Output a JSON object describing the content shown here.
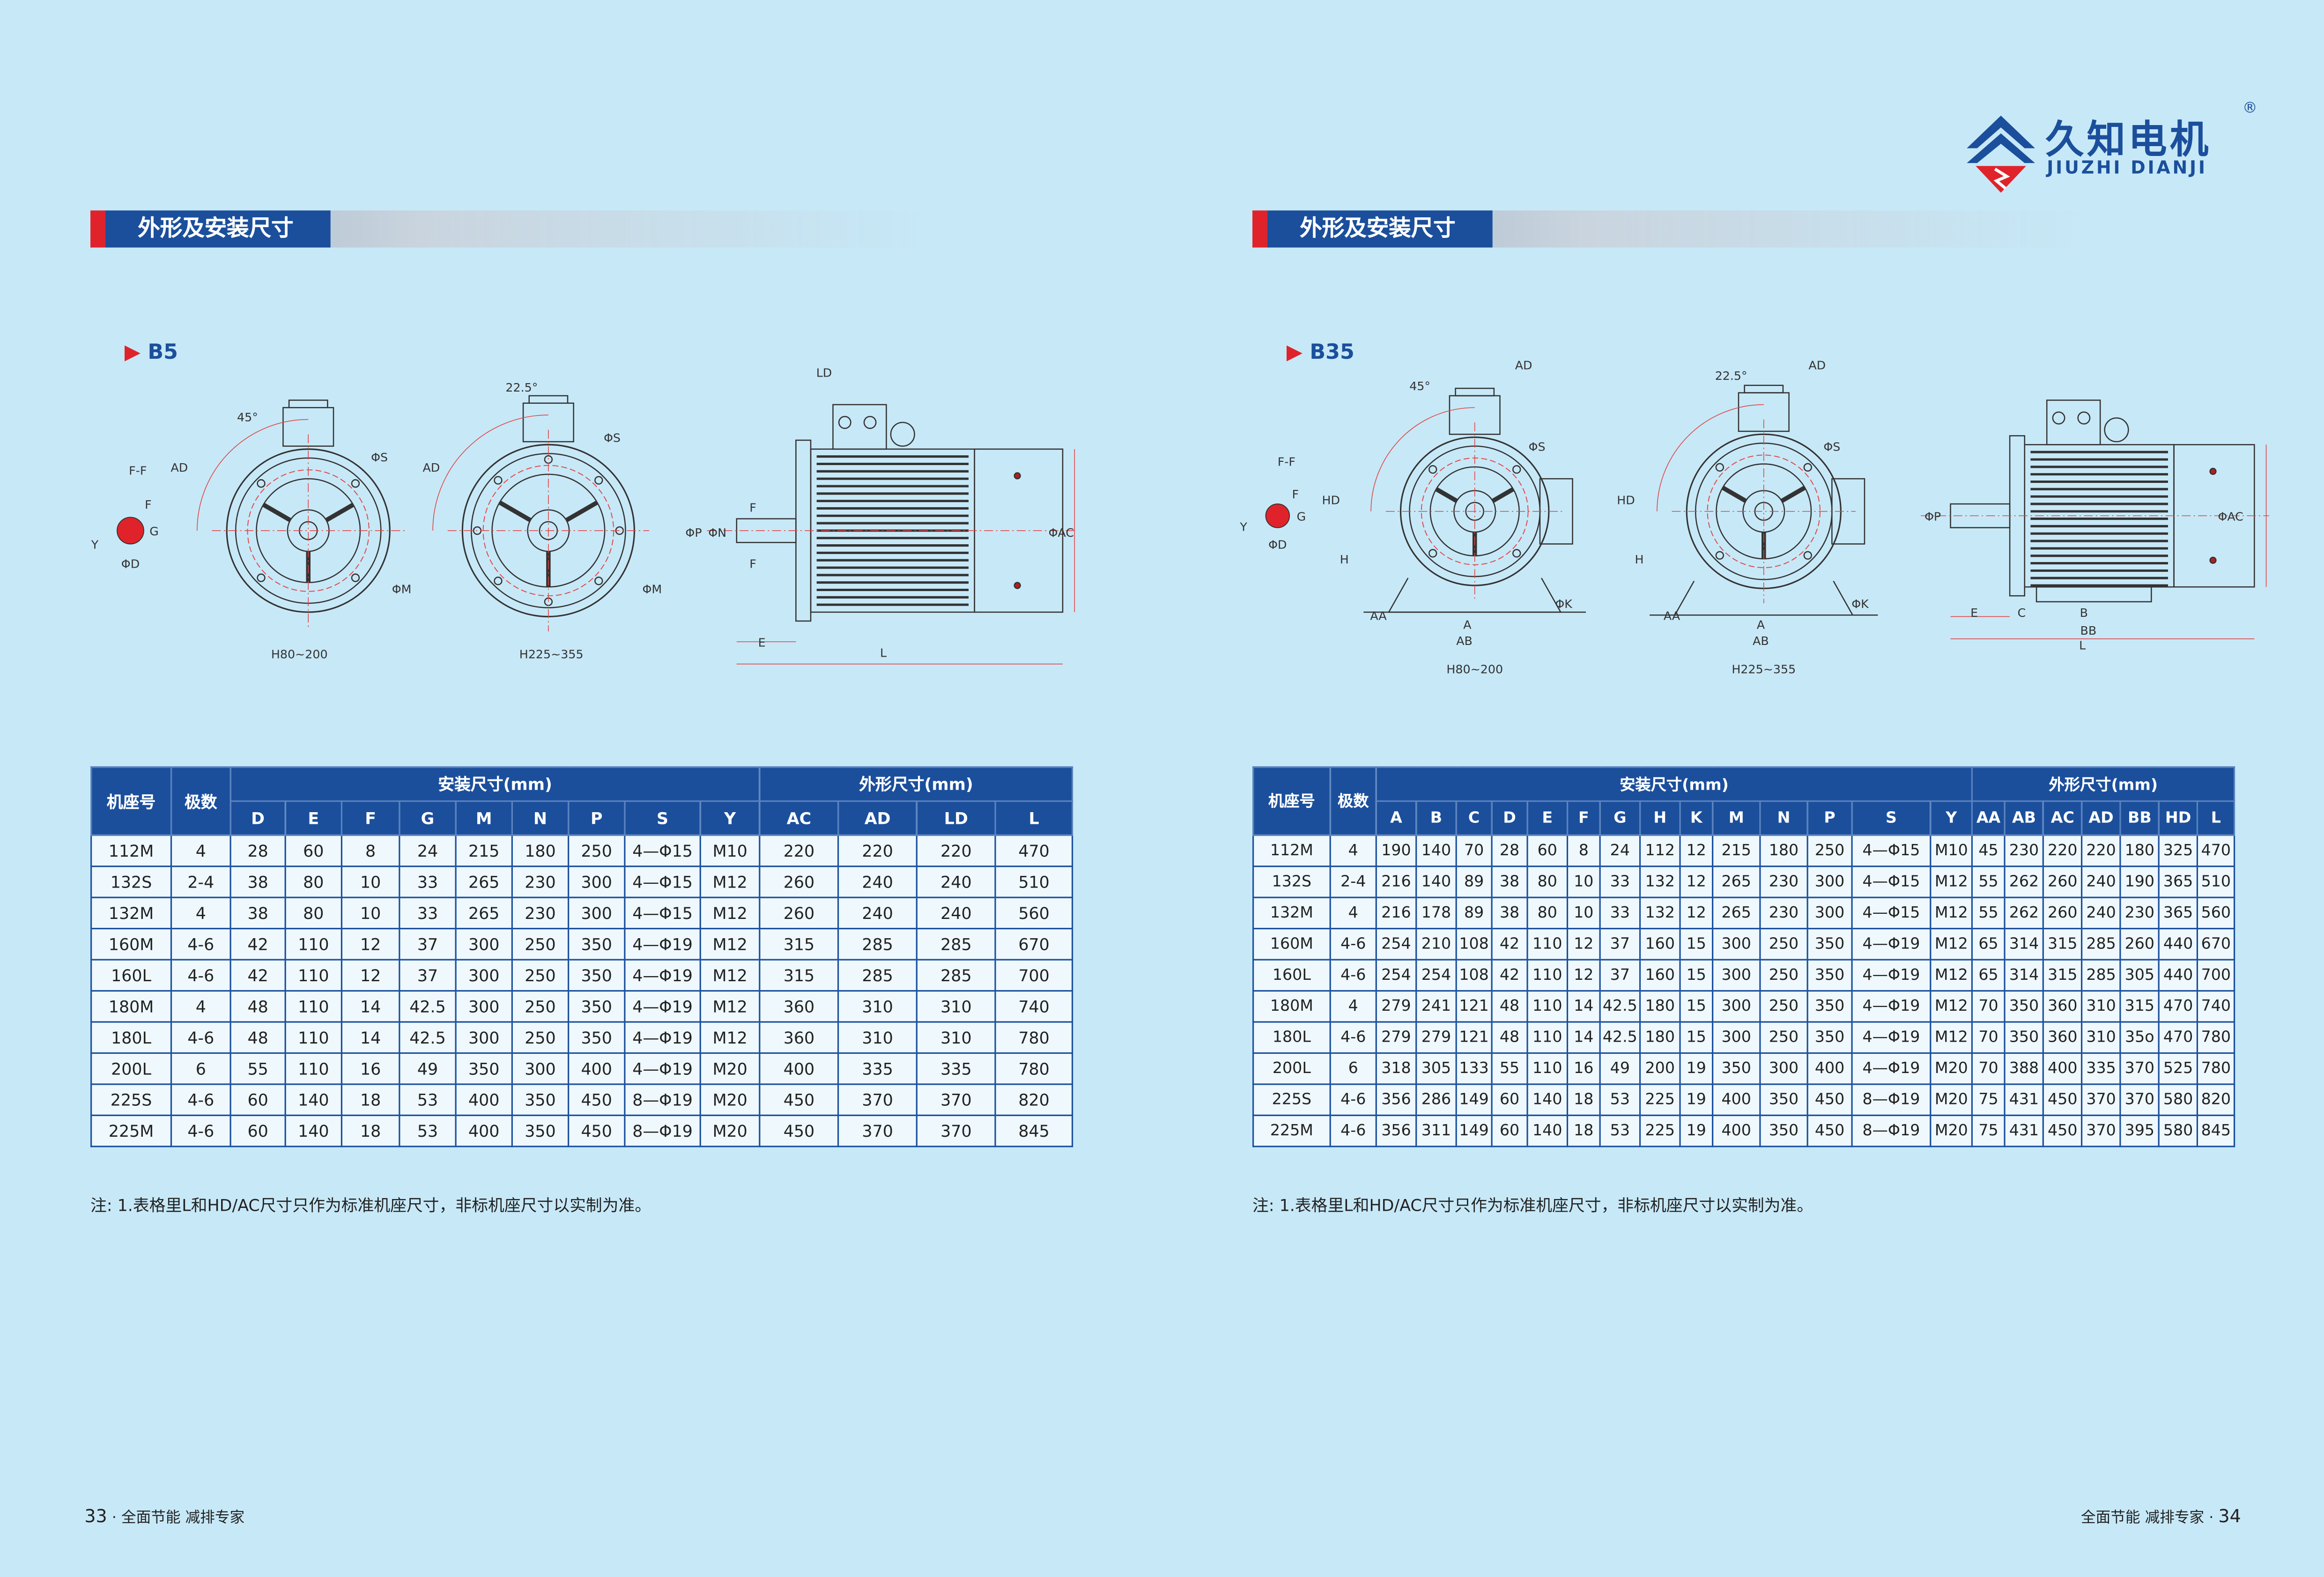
{
  "logo": {
    "name": "久知电机",
    "pinyin": "JIUZHI DIANJI",
    "mark": "®"
  },
  "pages": [
    {
      "section_title": "外形及安装尺寸",
      "drawing": {
        "title": "B5",
        "labels": [
          "F-F",
          "F",
          "G",
          "Y",
          "ΦD",
          "AD",
          "45°",
          "ΦS",
          "ΦM",
          "H80~200",
          "AD",
          "22.5°",
          "ΦS",
          "ΦM",
          "H225~355",
          "LD",
          "ΦP",
          "ΦN",
          "F",
          "F",
          "ΦAC",
          "E",
          "L"
        ]
      },
      "table": {
        "fixed_headers": [
          "机座号",
          "极数"
        ],
        "groups": [
          "安装尺寸(mm)",
          "外形尺寸(mm)"
        ],
        "install": [
          "D",
          "E",
          "F",
          "G",
          "M",
          "N",
          "P",
          "S",
          "Y"
        ],
        "outline": [
          "AC",
          "AD",
          "LD",
          "L"
        ],
        "rows": [
          [
            "112M",
            "4",
            "28",
            "60",
            "8",
            "24",
            "215",
            "180",
            "250",
            "4—Φ15",
            "M10",
            "220",
            "220",
            "220",
            "470"
          ],
          [
            "132S",
            "2-4",
            "38",
            "80",
            "10",
            "33",
            "265",
            "230",
            "300",
            "4—Φ15",
            "M12",
            "260",
            "240",
            "240",
            "510"
          ],
          [
            "132M",
            "4",
            "38",
            "80",
            "10",
            "33",
            "265",
            "230",
            "300",
            "4—Φ15",
            "M12",
            "260",
            "240",
            "240",
            "560"
          ],
          [
            "160M",
            "4-6",
            "42",
            "110",
            "12",
            "37",
            "300",
            "250",
            "350",
            "4—Φ19",
            "M12",
            "315",
            "285",
            "285",
            "670"
          ],
          [
            "160L",
            "4-6",
            "42",
            "110",
            "12",
            "37",
            "300",
            "250",
            "350",
            "4—Φ19",
            "M12",
            "315",
            "285",
            "285",
            "700"
          ],
          [
            "180M",
            "4",
            "48",
            "110",
            "14",
            "42.5",
            "300",
            "250",
            "350",
            "4—Φ19",
            "M12",
            "360",
            "310",
            "310",
            "740"
          ],
          [
            "180L",
            "4-6",
            "48",
            "110",
            "14",
            "42.5",
            "300",
            "250",
            "350",
            "4—Φ19",
            "M12",
            "360",
            "310",
            "310",
            "780"
          ],
          [
            "200L",
            "6",
            "55",
            "110",
            "16",
            "49",
            "350",
            "300",
            "400",
            "4—Φ19",
            "M20",
            "400",
            "335",
            "335",
            "780"
          ],
          [
            "225S",
            "4-6",
            "60",
            "140",
            "18",
            "53",
            "400",
            "350",
            "450",
            "8—Φ19",
            "M20",
            "450",
            "370",
            "370",
            "820"
          ],
          [
            "225M",
            "4-6",
            "60",
            "140",
            "18",
            "53",
            "400",
            "350",
            "450",
            "8—Φ19",
            "M20",
            "450",
            "370",
            "370",
            "845"
          ]
        ]
      },
      "note": "注: 1.表格里L和HD/AC尺寸只作为标准机座尺寸，非标机座尺寸以实制为准。",
      "footer": {
        "number": "33",
        "slogan": "· 全面节能  减排专家"
      }
    },
    {
      "section_title": "外形及安装尺寸",
      "drawing": {
        "title": "B35",
        "labels": [
          "F-F",
          "F",
          "G",
          "Y",
          "ΦD",
          "HD",
          "H",
          "45°",
          "AD",
          "ΦS",
          "AA",
          "A",
          "AB",
          "ΦK",
          "H80~200",
          "HD",
          "H",
          "22.5°",
          "AD",
          "ΦS",
          "AA",
          "A",
          "AB",
          "ΦK",
          "H225~355",
          "ΦP",
          "ΦAC",
          "E",
          "C",
          "B",
          "BB",
          "L"
        ]
      },
      "table": {
        "fixed_headers": [
          "机座号",
          "极数"
        ],
        "groups": [
          "安装尺寸(mm)",
          "外形尺寸(mm)"
        ],
        "install": [
          "A",
          "B",
          "C",
          "D",
          "E",
          "F",
          "G",
          "H",
          "K",
          "M",
          "N",
          "P",
          "S",
          "Y"
        ],
        "outline": [
          "AA",
          "AB",
          "AC",
          "AD",
          "BB",
          "HD",
          "L"
        ],
        "rows": [
          [
            "112M",
            "4",
            "190",
            "140",
            "70",
            "28",
            "60",
            "8",
            "24",
            "112",
            "12",
            "215",
            "180",
            "250",
            "4—Φ15",
            "M10",
            "45",
            "230",
            "220",
            "220",
            "180",
            "325",
            "470"
          ],
          [
            "132S",
            "2-4",
            "216",
            "140",
            "89",
            "38",
            "80",
            "10",
            "33",
            "132",
            "12",
            "265",
            "230",
            "300",
            "4—Φ15",
            "M12",
            "55",
            "262",
            "260",
            "240",
            "190",
            "365",
            "510"
          ],
          [
            "132M",
            "4",
            "216",
            "178",
            "89",
            "38",
            "80",
            "10",
            "33",
            "132",
            "12",
            "265",
            "230",
            "300",
            "4—Φ15",
            "M12",
            "55",
            "262",
            "260",
            "240",
            "230",
            "365",
            "560"
          ],
          [
            "160M",
            "4-6",
            "254",
            "210",
            "108",
            "42",
            "110",
            "12",
            "37",
            "160",
            "15",
            "300",
            "250",
            "350",
            "4—Φ19",
            "M12",
            "65",
            "314",
            "315",
            "285",
            "260",
            "440",
            "670"
          ],
          [
            "160L",
            "4-6",
            "254",
            "254",
            "108",
            "42",
            "110",
            "12",
            "37",
            "160",
            "15",
            "300",
            "250",
            "350",
            "4—Φ19",
            "M12",
            "65",
            "314",
            "315",
            "285",
            "305",
            "440",
            "700"
          ],
          [
            "180M",
            "4",
            "279",
            "241",
            "121",
            "48",
            "110",
            "14",
            "42.5",
            "180",
            "15",
            "300",
            "250",
            "350",
            "4—Φ19",
            "M12",
            "70",
            "350",
            "360",
            "310",
            "315",
            "470",
            "740"
          ],
          [
            "180L",
            "4-6",
            "279",
            "279",
            "121",
            "48",
            "110",
            "14",
            "42.5",
            "180",
            "15",
            "300",
            "250",
            "350",
            "4—Φ19",
            "M12",
            "70",
            "350",
            "360",
            "310",
            "35o",
            "470",
            "780"
          ],
          [
            "200L",
            "6",
            "318",
            "305",
            "133",
            "55",
            "110",
            "16",
            "49",
            "200",
            "19",
            "350",
            "300",
            "400",
            "4—Φ19",
            "M20",
            "70",
            "388",
            "400",
            "335",
            "370",
            "525",
            "780"
          ],
          [
            "225S",
            "4-6",
            "356",
            "286",
            "149",
            "60",
            "140",
            "18",
            "53",
            "225",
            "19",
            "400",
            "350",
            "450",
            "8—Φ19",
            "M20",
            "75",
            "431",
            "450",
            "370",
            "370",
            "580",
            "820"
          ],
          [
            "225M",
            "4-6",
            "356",
            "311",
            "149",
            "60",
            "140",
            "18",
            "53",
            "225",
            "19",
            "400",
            "350",
            "450",
            "8—Φ19",
            "M20",
            "75",
            "431",
            "450",
            "370",
            "395",
            "580",
            "845"
          ]
        ]
      },
      "note": "注: 1.表格里L和HD/AC尺寸只作为标准机座尺寸，非标机座尺寸以实制为准。",
      "footer": {
        "number": "34",
        "slogan": "全面节能  减排专家 ·"
      }
    }
  ]
}
